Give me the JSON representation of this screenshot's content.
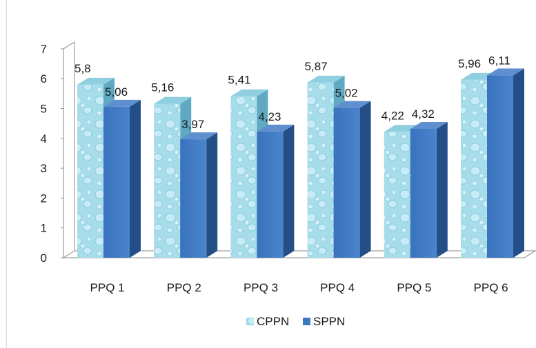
{
  "chart_data": {
    "type": "bar",
    "categories": [
      "PPQ 1",
      "PPQ 2",
      "PPQ 3",
      "PPQ 4",
      "PPQ 5",
      "PPQ 6"
    ],
    "series": [
      {
        "name": "CPPN",
        "values": [
          5.8,
          5.16,
          5.41,
          5.87,
          4.22,
          5.96
        ],
        "labels": [
          "5,8",
          "5,16",
          "5,41",
          "5,87",
          "4,22",
          "5,96"
        ],
        "color": "#a7dcea",
        "pattern": "water-droplets"
      },
      {
        "name": "SPPN",
        "values": [
          5.06,
          3.97,
          4.23,
          5.02,
          4.32,
          6.11
        ],
        "labels": [
          "5,06",
          "3,97",
          "4,23",
          "5,02",
          "4,32",
          "6,11"
        ],
        "color": "#3d77bf"
      }
    ],
    "yticks": [
      "0",
      "1",
      "2",
      "3",
      "4",
      "5",
      "6",
      "7"
    ],
    "ylim": [
      0,
      7
    ],
    "style_3d": true,
    "legend_position": "bottom"
  }
}
